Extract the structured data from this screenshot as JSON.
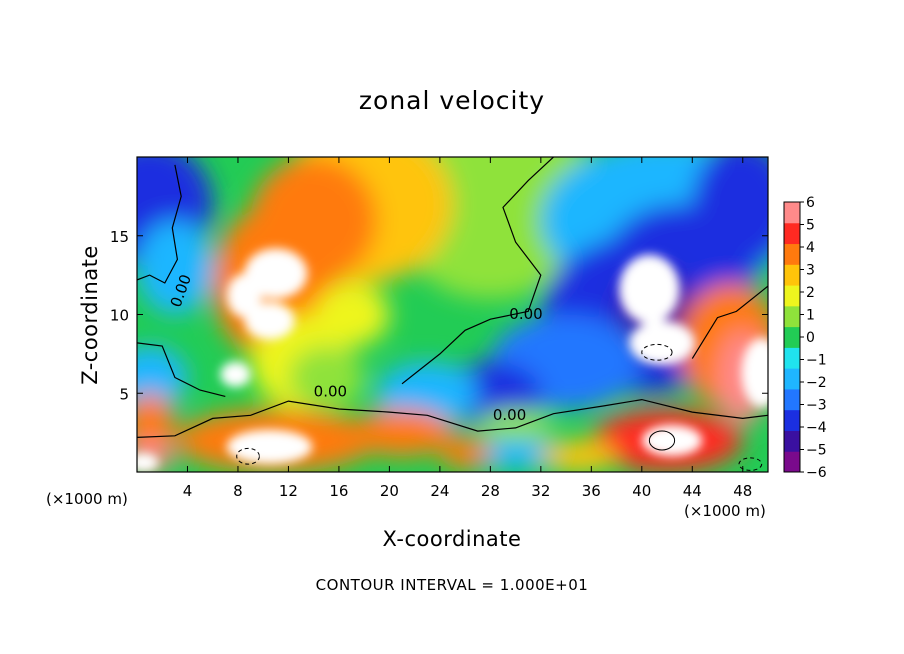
{
  "chart_data": {
    "type": "heatmap",
    "title": "zonal velocity",
    "xlabel": "X-coordinate",
    "ylabel": "Z-coordinate",
    "x_scale_label": "(×1000 m)",
    "z_scale_label": "(×1000 m)",
    "xlim": [
      0,
      50
    ],
    "zlim": [
      0,
      20
    ],
    "x_ticks": [
      4,
      8,
      12,
      16,
      20,
      24,
      28,
      32,
      36,
      40,
      44,
      48
    ],
    "x_tick_labels": [
      "4",
      "8",
      "12",
      "16",
      "20",
      "24",
      "28",
      "32",
      "36",
      "40",
      "44",
      "48"
    ],
    "z_ticks": [
      5,
      10,
      15
    ],
    "z_tick_labels": [
      "5",
      "10",
      "15"
    ],
    "colorbar": {
      "min": -6,
      "max": 6,
      "labels": [
        "6",
        "5",
        "4",
        "3",
        "2",
        "1",
        "0",
        "−1",
        "−2",
        "−3",
        "−4",
        "−5",
        "−6"
      ],
      "colors": [
        "#7a0a8c",
        "#3a10a0",
        "#1b2fe0",
        "#2277ff",
        "#1fb6ff",
        "#20e3ee",
        "#22cc55",
        "#8fe23b",
        "#eef51e",
        "#ffc40a",
        "#ff7a0e",
        "#ff2a22",
        "#ff8a8a"
      ]
    },
    "contour_labels": [
      "0.00",
      "0.00",
      "0.00",
      "0.00"
    ],
    "footnote": "CONTOUR INTERVAL = 1.000E+01"
  }
}
